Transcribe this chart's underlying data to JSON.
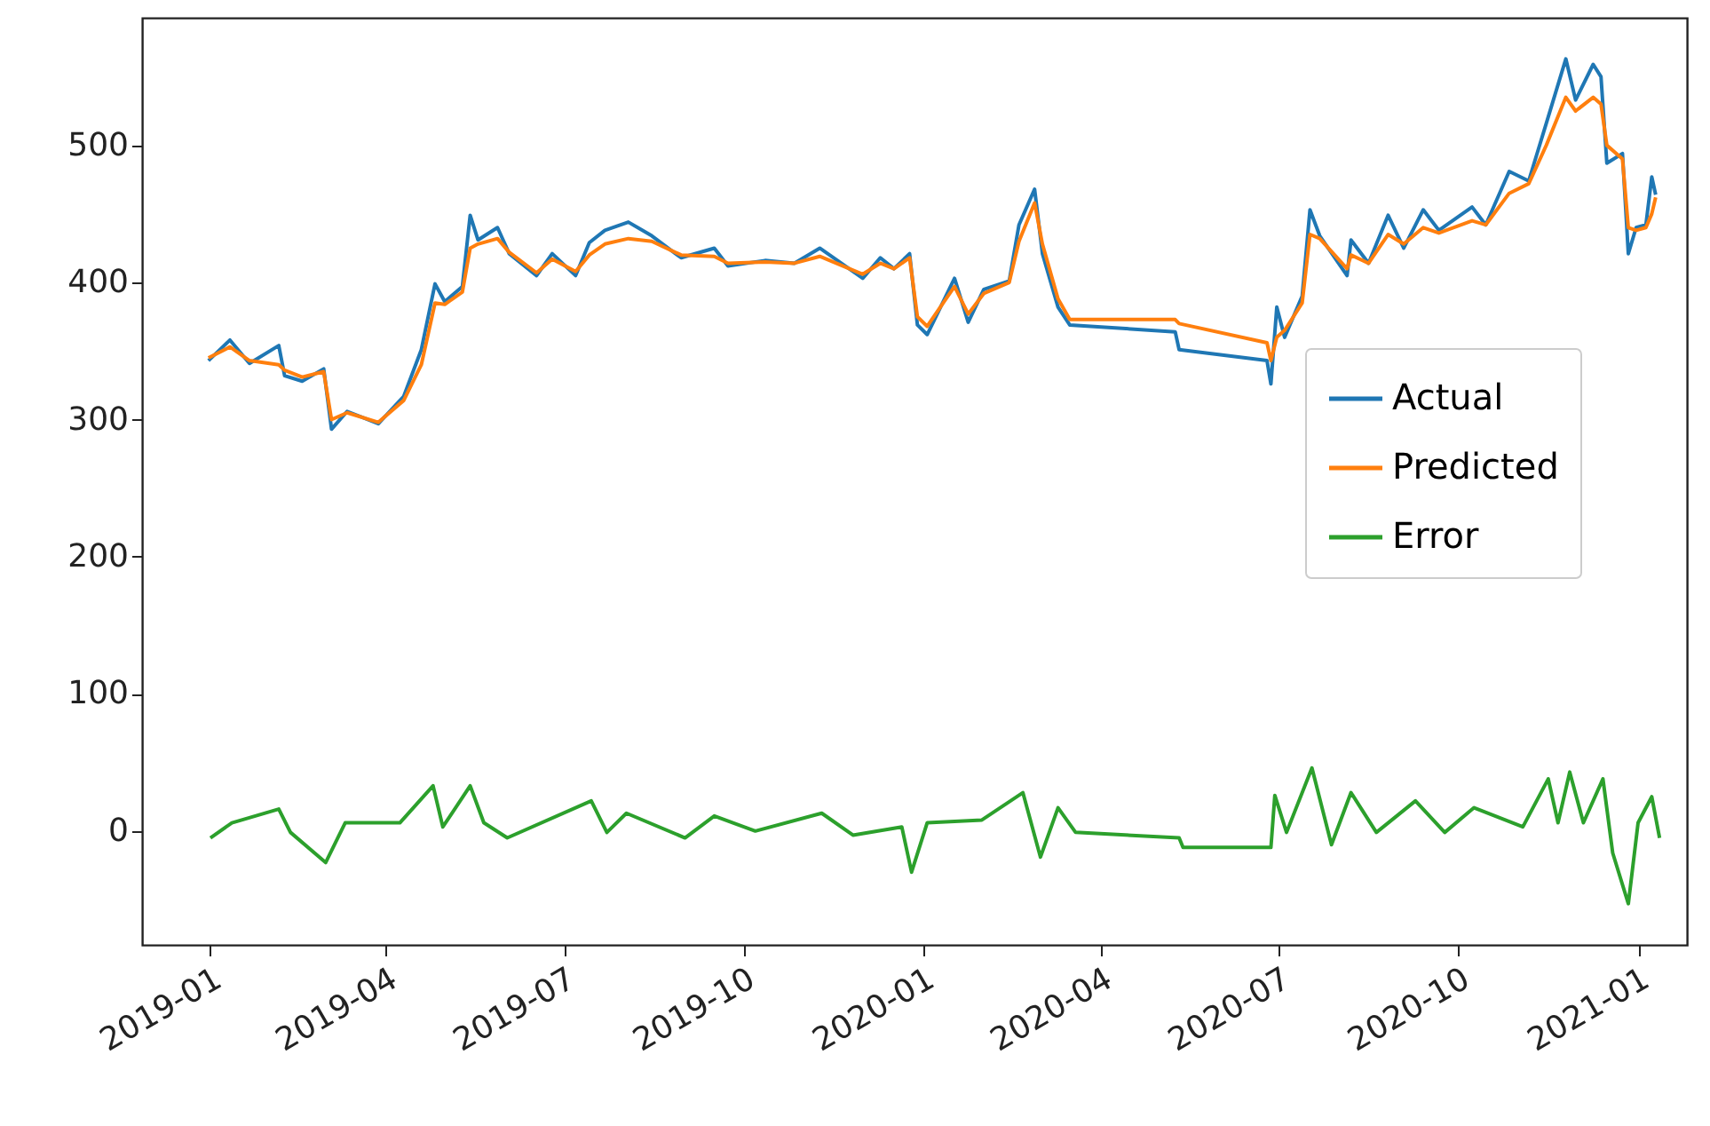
{
  "chart_data": {
    "type": "line",
    "xlim": [
      "2018-11-27",
      "2021-01-26"
    ],
    "ylim": [
      -83,
      593
    ],
    "xticks": [
      "2019-01",
      "2019-04",
      "2019-07",
      "2019-10",
      "2020-01",
      "2020-04",
      "2020-07",
      "2020-10",
      "2021-01"
    ],
    "yticks": [
      0,
      100,
      200,
      300,
      400,
      500
    ],
    "grid": false,
    "legend": "right",
    "line_style": "solid",
    "marker": "none",
    "series": [
      {
        "name": "Actual",
        "color": "#1f77b4",
        "x": [
          "2018-12-31",
          "2019-01-11",
          "2019-01-21",
          "2019-02-05",
          "2019-02-08",
          "2019-02-17",
          "2019-02-28",
          "2019-03-04",
          "2019-03-12",
          "2019-03-28",
          "2019-04-10",
          "2019-04-19",
          "2019-04-26",
          "2019-05-01",
          "2019-05-10",
          "2019-05-14",
          "2019-05-18",
          "2019-05-28",
          "2019-06-03",
          "2019-06-17",
          "2019-06-25",
          "2019-07-07",
          "2019-07-14",
          "2019-07-22",
          "2019-08-03",
          "2019-08-15",
          "2019-08-30",
          "2019-09-16",
          "2019-09-23",
          "2019-10-12",
          "2019-10-27",
          "2019-11-09",
          "2019-12-01",
          "2019-12-10",
          "2019-12-17",
          "2019-12-25",
          "2019-12-29",
          "2020-01-03",
          "2020-01-17",
          "2020-01-24",
          "2020-02-01",
          "2020-02-14",
          "2020-02-19",
          "2020-02-27",
          "2020-03-02",
          "2020-03-10",
          "2020-03-16",
          "2020-05-09",
          "2020-05-11",
          "2020-06-25",
          "2020-06-27",
          "2020-06-30",
          "2020-07-04",
          "2020-07-13",
          "2020-07-17",
          "2020-07-22",
          "2020-08-05",
          "2020-08-07",
          "2020-08-16",
          "2020-08-26",
          "2020-09-03",
          "2020-09-13",
          "2020-09-21",
          "2020-10-08",
          "2020-10-15",
          "2020-10-27",
          "2020-11-06",
          "2020-11-15",
          "2020-11-25",
          "2020-11-30",
          "2020-12-09",
          "2020-12-13",
          "2020-12-16",
          "2020-12-24",
          "2020-12-27",
          "2020-12-31",
          "2021-01-05",
          "2021-01-08",
          "2021-01-10"
        ],
        "values": [
          343,
          358,
          341,
          354,
          332,
          328,
          337,
          293,
          306,
          297,
          317,
          351,
          399,
          386,
          397,
          449,
          431,
          440,
          421,
          405,
          421,
          405,
          429,
          438,
          444,
          434,
          418,
          425,
          412,
          416,
          414,
          425,
          403,
          418,
          410,
          421,
          369,
          362,
          403,
          371,
          395,
          401,
          442,
          468,
          421,
          382,
          369,
          364,
          351,
          343,
          326,
          382,
          360,
          390,
          453,
          434,
          405,
          431,
          414,
          449,
          425,
          453,
          438,
          455,
          442,
          481,
          474,
          516,
          563,
          533,
          559,
          550,
          487,
          494,
          421,
          440,
          442,
          477,
          464
        ]
      },
      {
        "name": "Predicted",
        "color": "#ff7f0e",
        "x": [
          "2018-12-31",
          "2019-01-11",
          "2019-01-21",
          "2019-02-05",
          "2019-02-08",
          "2019-02-17",
          "2019-02-28",
          "2019-03-04",
          "2019-03-12",
          "2019-03-28",
          "2019-04-10",
          "2019-04-19",
          "2019-04-26",
          "2019-05-01",
          "2019-05-10",
          "2019-05-14",
          "2019-05-18",
          "2019-05-28",
          "2019-06-03",
          "2019-06-17",
          "2019-06-25",
          "2019-07-07",
          "2019-07-14",
          "2019-07-22",
          "2019-08-03",
          "2019-08-15",
          "2019-08-30",
          "2019-09-16",
          "2019-09-23",
          "2019-10-12",
          "2019-10-27",
          "2019-11-09",
          "2019-12-01",
          "2019-12-10",
          "2019-12-17",
          "2019-12-25",
          "2019-12-29",
          "2020-01-03",
          "2020-01-17",
          "2020-01-24",
          "2020-02-01",
          "2020-02-14",
          "2020-02-19",
          "2020-02-27",
          "2020-03-02",
          "2020-03-10",
          "2020-03-16",
          "2020-05-09",
          "2020-05-11",
          "2020-06-25",
          "2020-06-27",
          "2020-06-30",
          "2020-07-04",
          "2020-07-13",
          "2020-07-17",
          "2020-07-22",
          "2020-08-05",
          "2020-08-07",
          "2020-08-16",
          "2020-08-26",
          "2020-09-03",
          "2020-09-13",
          "2020-09-21",
          "2020-10-08",
          "2020-10-15",
          "2020-10-27",
          "2020-11-06",
          "2020-11-15",
          "2020-11-25",
          "2020-11-30",
          "2020-12-09",
          "2020-12-13",
          "2020-12-16",
          "2020-12-24",
          "2020-12-27",
          "2020-12-31",
          "2021-01-05",
          "2021-01-08",
          "2021-01-10"
        ],
        "values": [
          345,
          353,
          343,
          340,
          336,
          331,
          335,
          300,
          305,
          298,
          314,
          340,
          385,
          384,
          393,
          425,
          428,
          432,
          422,
          407,
          417,
          408,
          420,
          428,
          432,
          430,
          420,
          419,
          414,
          415,
          414,
          419,
          406,
          414,
          410,
          418,
          375,
          368,
          397,
          377,
          392,
          400,
          430,
          458,
          428,
          388,
          373,
          373,
          370,
          356,
          343,
          360,
          365,
          385,
          435,
          432,
          410,
          420,
          414,
          435,
          428,
          440,
          436,
          445,
          442,
          465,
          472,
          500,
          535,
          525,
          535,
          530,
          500,
          490,
          440,
          438,
          440,
          450,
          462
        ]
      },
      {
        "name": "Error",
        "color": "#2ca02c",
        "x": [
          "2019-01-01",
          "2019-01-12",
          "2019-02-05",
          "2019-02-11",
          "2019-03-01",
          "2019-03-11",
          "2019-04-08",
          "2019-04-25",
          "2019-04-30",
          "2019-05-14",
          "2019-05-21",
          "2019-06-02",
          "2019-07-15",
          "2019-07-23",
          "2019-08-02",
          "2019-09-01",
          "2019-09-16",
          "2019-10-07",
          "2019-11-10",
          "2019-11-26",
          "2019-12-21",
          "2019-12-26",
          "2020-01-03",
          "2020-01-31",
          "2020-02-21",
          "2020-03-01",
          "2020-03-10",
          "2020-03-19",
          "2020-05-11",
          "2020-05-13",
          "2020-06-27",
          "2020-06-29",
          "2020-07-05",
          "2020-07-18",
          "2020-07-28",
          "2020-08-07",
          "2020-08-20",
          "2020-09-09",
          "2020-09-24",
          "2020-10-09",
          "2020-11-03",
          "2020-11-16",
          "2020-11-21",
          "2020-11-27",
          "2020-12-04",
          "2020-12-14",
          "2020-12-19",
          "2020-12-27",
          "2021-01-01",
          "2021-01-08",
          "2021-01-12"
        ],
        "values": [
          -5,
          6,
          16,
          -1,
          -23,
          6,
          6,
          33,
          3,
          33,
          6,
          -5,
          22,
          -1,
          13,
          -5,
          11,
          0,
          13,
          -3,
          3,
          -30,
          6,
          8,
          28,
          -19,
          17,
          -1,
          -5,
          -12,
          -12,
          26,
          -1,
          46,
          -10,
          28,
          -1,
          22,
          -1,
          17,
          3,
          38,
          6,
          43,
          6,
          38,
          -16,
          -53,
          6,
          25,
          -5
        ]
      }
    ]
  }
}
